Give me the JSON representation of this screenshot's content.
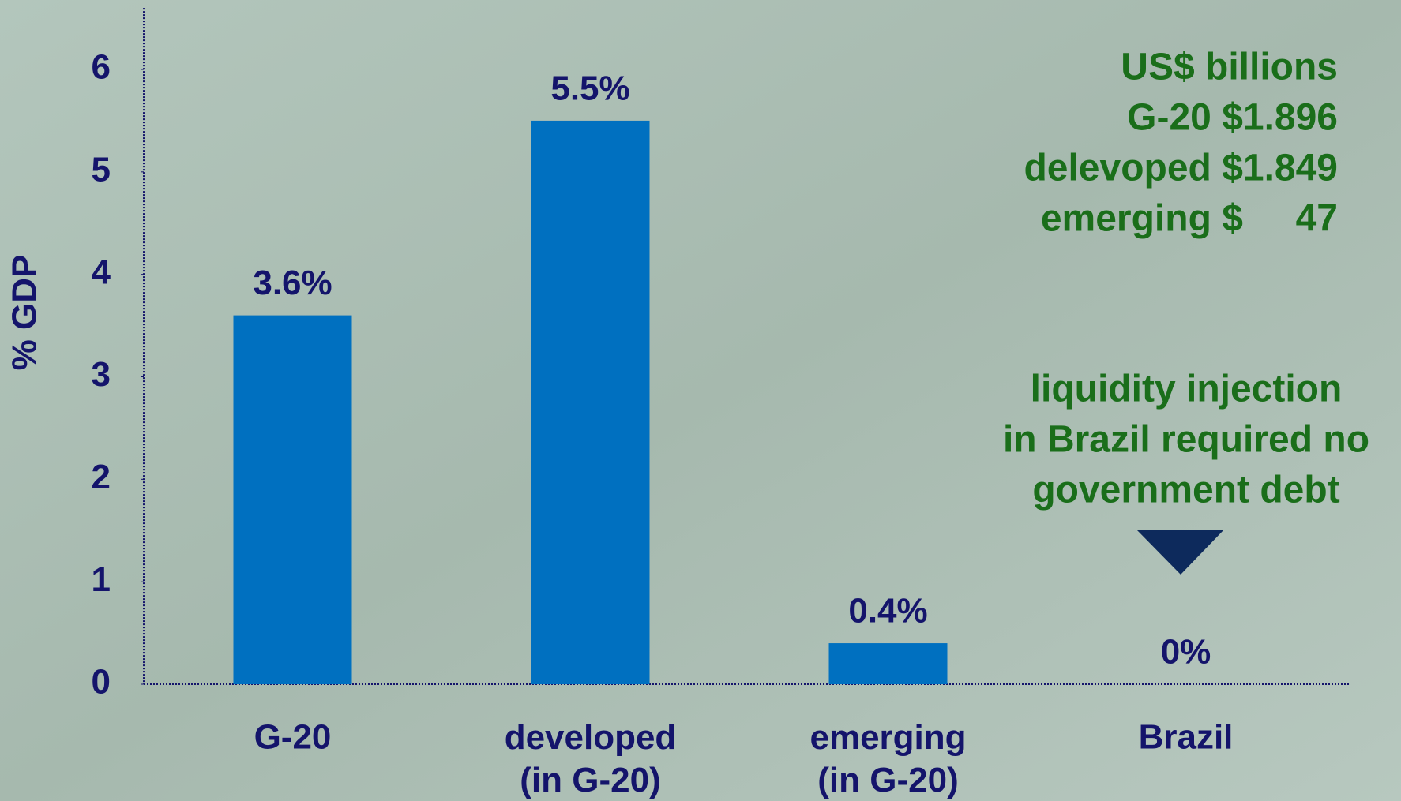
{
  "chart_data": {
    "type": "bar",
    "y_label": "% GDP",
    "categories": [
      "G-20",
      "developed\n(in G-20)",
      "emerging\n(in G-20)",
      "Brazil"
    ],
    "values": [
      3.6,
      5.5,
      0.4,
      0
    ],
    "value_labels": [
      "3.6%",
      "5.5%",
      "0.4%",
      "0%"
    ],
    "color": "#0070c0",
    "ylim": [
      0,
      6.6
    ],
    "yticks": [
      0,
      1,
      2,
      3,
      4,
      5,
      6
    ],
    "annotations": [
      {
        "lines": [
          "US$ billions",
          "G-20 $1.896",
          "delevoped $1.849",
          "emerging $     47"
        ],
        "color": "#1a6e1a"
      },
      {
        "lines": [
          "liquidity injection",
          "in Brazil required no",
          "government debt"
        ],
        "color": "#1a6e1a"
      }
    ]
  }
}
